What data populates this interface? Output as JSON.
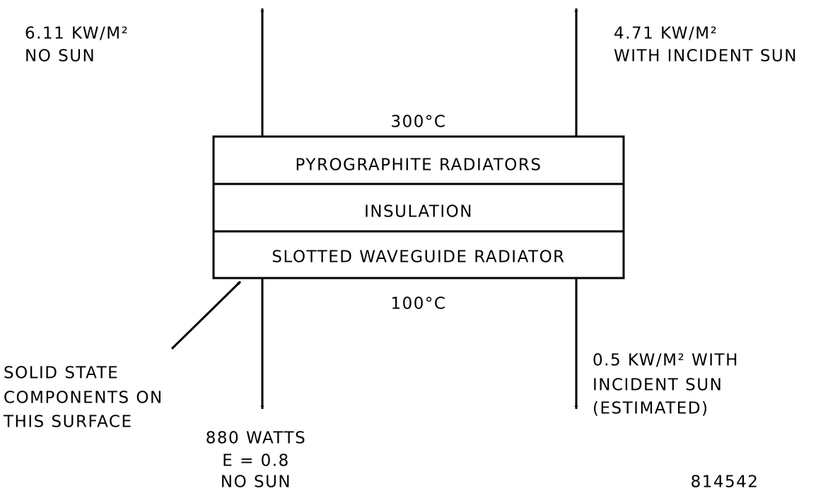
{
  "annotations": {
    "top_left": [
      "6.11 KW/M²",
      "NO SUN"
    ],
    "top_right": [
      "4.71 KW/M²",
      "WITH INCIDENT SUN"
    ],
    "top_temperature": "300°C",
    "bottom_temperature": "100°C",
    "bottom_left_note": [
      "SOLID STATE",
      "COMPONENTS ON",
      "THIS SURFACE"
    ],
    "bottom_right": [
      "0.5 KW/M² WITH",
      "INCIDENT SUN",
      "(ESTIMATED)"
    ],
    "bottom_center": [
      "880 WATTS",
      "E = 0.8",
      "NO SUN"
    ],
    "figure_number": "814542"
  },
  "layers": [
    "PYROGRAPHITE RADIATORS",
    "INSULATION",
    "SLOTTED WAVEGUIDE RADIATOR"
  ]
}
